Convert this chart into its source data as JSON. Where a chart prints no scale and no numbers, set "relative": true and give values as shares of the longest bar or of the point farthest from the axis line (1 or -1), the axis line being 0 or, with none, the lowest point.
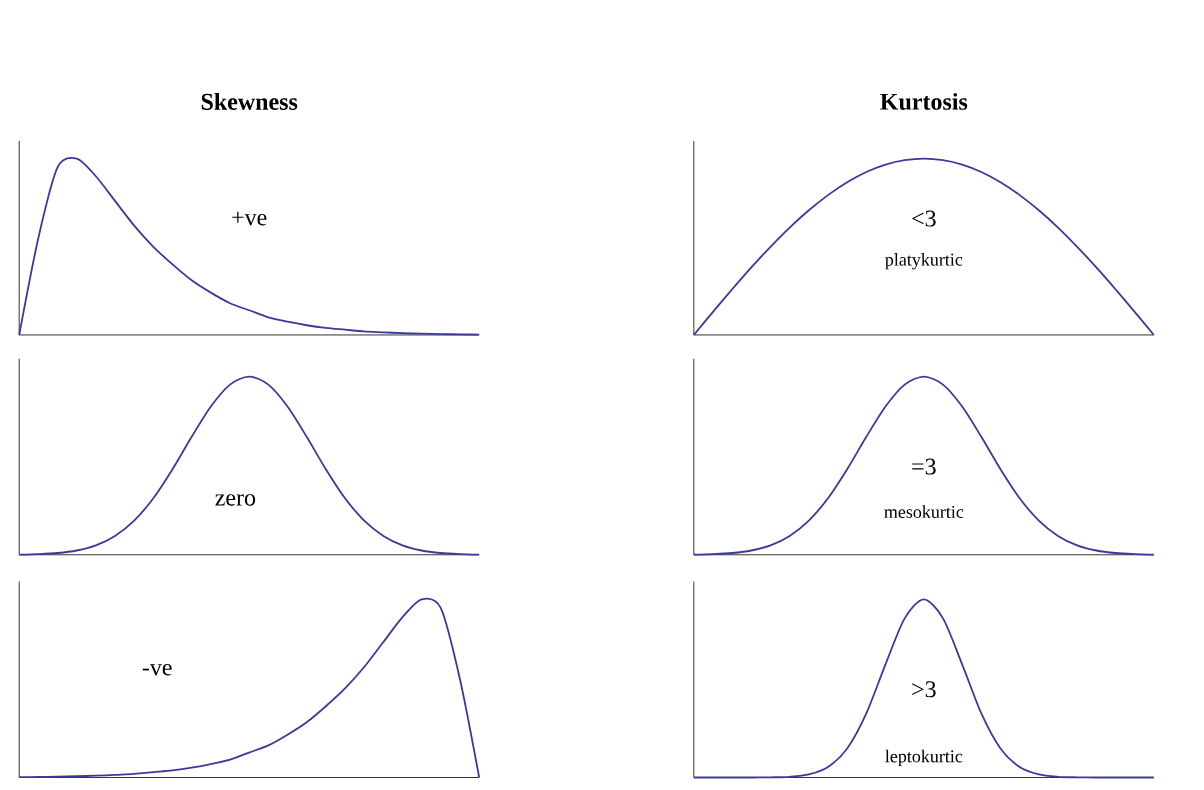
{
  "chart_data": [
    {
      "type": "line",
      "title": "Skewness",
      "relative": true,
      "categories": [
        null,
        null,
        null,
        null,
        null,
        null,
        null,
        null,
        null,
        null,
        null,
        null,
        null,
        null,
        null,
        null,
        null,
        null,
        null,
        null,
        null,
        null,
        null,
        null,
        null
      ],
      "annotations": [
        "+ve"
      ],
      "series": [
        {
          "color": "#3a3a9e",
          "values": [
            0,
            0.55,
            0.95,
            1.0,
            0.9,
            0.76,
            0.62,
            0.5,
            0.4,
            0.31,
            0.24,
            0.18,
            0.14,
            0.1,
            0.075,
            0.055,
            0.04,
            0.03,
            0.02,
            0.015,
            0.01,
            0.007,
            0.005,
            0.003,
            0.002
          ]
        }
      ]
    },
    {
      "type": "line",
      "title": "Kurtosis",
      "relative": true,
      "categories": [
        null,
        null,
        null,
        null,
        null,
        null,
        null,
        null,
        null,
        null,
        null,
        null,
        null,
        null,
        null,
        null,
        null,
        null,
        null,
        null,
        null,
        null,
        null,
        null,
        null
      ],
      "annotations": [
        "<3",
        "platykurtic"
      ],
      "series": [
        {
          "color": "#3a3a9e",
          "values": [
            0,
            0.131,
            0.259,
            0.383,
            0.5,
            0.609,
            0.707,
            0.793,
            0.866,
            0.924,
            0.966,
            0.991,
            1,
            0.991,
            0.966,
            0.924,
            0.866,
            0.793,
            0.707,
            0.609,
            0.5,
            0.383,
            0.259,
            0.131,
            0
          ]
        }
      ]
    },
    {
      "type": "line",
      "relative": true,
      "categories": [
        null,
        null,
        null,
        null,
        null,
        null,
        null,
        null,
        null,
        null,
        null,
        null,
        null,
        null,
        null,
        null,
        null,
        null,
        null,
        null,
        null,
        null,
        null,
        null,
        null
      ],
      "annotations": [
        "zero"
      ],
      "series": [
        {
          "color": "#3a3a9e",
          "values": [
            0.001,
            0.004,
            0.01,
            0.024,
            0.053,
            0.106,
            0.192,
            0.317,
            0.48,
            0.662,
            0.832,
            0.955,
            1,
            0.955,
            0.832,
            0.662,
            0.48,
            0.317,
            0.192,
            0.106,
            0.053,
            0.024,
            0.01,
            0.004,
            0.001
          ]
        }
      ]
    },
    {
      "type": "line",
      "relative": true,
      "categories": [
        null,
        null,
        null,
        null,
        null,
        null,
        null,
        null,
        null,
        null,
        null,
        null,
        null,
        null,
        null,
        null,
        null,
        null,
        null,
        null,
        null,
        null,
        null,
        null,
        null
      ],
      "annotations": [
        "=3",
        "mesokurtic"
      ],
      "series": [
        {
          "color": "#3a3a9e",
          "values": [
            0.001,
            0.004,
            0.01,
            0.024,
            0.053,
            0.106,
            0.192,
            0.317,
            0.48,
            0.662,
            0.832,
            0.955,
            1,
            0.955,
            0.832,
            0.662,
            0.48,
            0.317,
            0.192,
            0.106,
            0.053,
            0.024,
            0.01,
            0.004,
            0.001
          ]
        }
      ]
    },
    {
      "type": "line",
      "relative": true,
      "categories": [
        null,
        null,
        null,
        null,
        null,
        null,
        null,
        null,
        null,
        null,
        null,
        null,
        null,
        null,
        null,
        null,
        null,
        null,
        null,
        null,
        null,
        null,
        null,
        null,
        null
      ],
      "annotations": [
        "-ve"
      ],
      "series": [
        {
          "color": "#3a3a9e",
          "values": [
            0.002,
            0.003,
            0.005,
            0.007,
            0.01,
            0.015,
            0.02,
            0.03,
            0.04,
            0.055,
            0.075,
            0.1,
            0.14,
            0.18,
            0.24,
            0.31,
            0.4,
            0.5,
            0.62,
            0.76,
            0.9,
            1.0,
            0.95,
            0.55,
            0
          ]
        }
      ]
    },
    {
      "type": "line",
      "relative": true,
      "categories": [
        null,
        null,
        null,
        null,
        null,
        null,
        null,
        null,
        null,
        null,
        null,
        null,
        null,
        null,
        null,
        null,
        null,
        null,
        null,
        null,
        null,
        null,
        null,
        null,
        null
      ],
      "annotations": [
        ">3",
        "leptokurtic"
      ],
      "series": [
        {
          "color": "#3a3a9e",
          "values": [
            0,
            0,
            0,
            0,
            0.001,
            0.004,
            0.017,
            0.059,
            0.163,
            0.36,
            0.635,
            0.893,
            1,
            0.893,
            0.635,
            0.36,
            0.163,
            0.059,
            0.017,
            0.004,
            0.001,
            0,
            0,
            0,
            0
          ]
        }
      ]
    }
  ]
}
